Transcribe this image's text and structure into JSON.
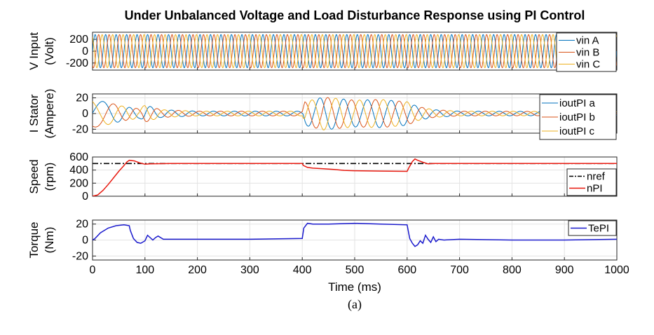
{
  "title": "Under Unbalanced Voltage and Load Disturbance Response using PI Control",
  "caption": "(a)",
  "colors": {
    "blue": "#0072bd",
    "orange": "#d95319",
    "yellow": "#edb120",
    "red": "#e8190f",
    "navy": "#1a1acd",
    "black": "#000000",
    "grid": "#e3e3e3"
  },
  "chart_data": [
    {
      "type": "line",
      "ylabel": [
        "V Input",
        "(Volt)"
      ],
      "ylim": [
        -320,
        320
      ],
      "yticks": [
        -200,
        0,
        200
      ],
      "ytick_labels": [
        "-200",
        "0",
        "200"
      ],
      "xlim": [
        0,
        1000
      ],
      "x_unit": "ms",
      "grid": true,
      "legend_position": "top-right",
      "signal": {
        "kind": "three-phase sinusoid",
        "frequency_hz": 50,
        "amplitude": 280
      },
      "series": [
        {
          "name": "vin A",
          "phase_deg": 0
        },
        {
          "name": "vin B",
          "phase_deg": -120
        },
        {
          "name": "vin C",
          "phase_deg": 120
        }
      ]
    },
    {
      "type": "line",
      "ylabel": [
        "I Stator",
        "(Ampere)"
      ],
      "ylim": [
        -25,
        25
      ],
      "yticks": [
        -20,
        0,
        20
      ],
      "ytick_labels": [
        "-20",
        "0",
        "20"
      ],
      "xlim": [
        0,
        1000
      ],
      "x_unit": "ms",
      "grid": true,
      "legend_position": "top-right",
      "envelope": {
        "t_ms": [
          0,
          30,
          60,
          90,
          100,
          130,
          200,
          400,
          405,
          440,
          500,
          550,
          600,
          620,
          650,
          700,
          1000
        ],
        "amp": [
          18,
          14,
          9,
          6,
          11,
          5,
          3,
          3,
          15,
          21,
          17,
          18,
          15,
          9,
          5,
          3,
          2.5
        ]
      },
      "electrical_frequency_hz": {
        "t_ms": [
          0,
          70,
          400,
          420,
          600,
          640,
          1000
        ],
        "f": [
          10,
          25,
          25,
          22,
          22,
          25,
          25
        ]
      },
      "series": [
        {
          "name": "ioutPI a",
          "phase_deg": 0
        },
        {
          "name": "ioutPI b",
          "phase_deg": -120
        },
        {
          "name": "ioutPI c",
          "phase_deg": 120
        }
      ]
    },
    {
      "type": "line",
      "ylabel": [
        "Speed",
        "(rpm)"
      ],
      "ylim": [
        0,
        600
      ],
      "yticks": [
        0,
        200,
        400,
        600
      ],
      "ytick_labels": [
        "0",
        "200",
        "400",
        "600"
      ],
      "xlim": [
        0,
        1000
      ],
      "x_unit": "ms",
      "grid": true,
      "legend_position": "bottom-right",
      "series": [
        {
          "name": "nref",
          "x": [
            0,
            1000
          ],
          "y": [
            500,
            500
          ]
        },
        {
          "name": "nPI",
          "x": [
            0,
            10,
            20,
            30,
            40,
            50,
            60,
            65,
            70,
            80,
            90,
            100,
            110,
            150,
            200,
            300,
            400,
            402,
            410,
            420,
            440,
            460,
            480,
            500,
            550,
            600,
            603,
            610,
            615,
            620,
            630,
            640,
            650,
            670,
            700,
            800,
            900,
            1000
          ],
          "y": [
            0,
            20,
            90,
            180,
            280,
            380,
            470,
            520,
            550,
            540,
            510,
            490,
            495,
            500,
            500,
            500,
            500,
            470,
            440,
            430,
            420,
            410,
            395,
            390,
            385,
            380,
            430,
            530,
            570,
            550,
            520,
            495,
            500,
            500,
            500,
            500,
            500,
            500
          ]
        }
      ]
    },
    {
      "type": "line",
      "ylabel": [
        "Torque",
        "(Nm)"
      ],
      "ylim": [
        -25,
        25
      ],
      "yticks": [
        -20,
        0,
        20
      ],
      "ytick_labels": [
        "-20",
        "0",
        "20"
      ],
      "xlim": [
        0,
        1000
      ],
      "xticks": [
        0,
        100,
        200,
        300,
        400,
        500,
        600,
        700,
        800,
        900,
        1000
      ],
      "xtick_labels": [
        "0",
        "100",
        "200",
        "300",
        "400",
        "500",
        "600",
        "700",
        "800",
        "900",
        "1000"
      ],
      "xlabel": "Time (ms)",
      "grid": true,
      "legend_position": "top-right",
      "series": [
        {
          "name": "TePI",
          "x": [
            0,
            5,
            15,
            30,
            45,
            60,
            70,
            72,
            78,
            85,
            92,
            100,
            105,
            115,
            120,
            125,
            135,
            150,
            200,
            300,
            400,
            403,
            410,
            420,
            450,
            500,
            550,
            600,
            602,
            605,
            610,
            615,
            620,
            625,
            630,
            635,
            640,
            645,
            650,
            655,
            660,
            670,
            700,
            800,
            900,
            1000
          ],
          "y": [
            0,
            2,
            9,
            15,
            18,
            19,
            18,
            12,
            2,
            -3,
            -4,
            -1,
            6,
            0,
            3,
            5,
            1,
            1,
            1,
            1,
            2,
            15,
            21,
            20,
            20,
            21,
            20,
            19,
            12,
            2,
            -4,
            -8,
            -6,
            -1,
            -4,
            6,
            1,
            -3,
            4,
            -2,
            1,
            0,
            1,
            0,
            0,
            1
          ]
        }
      ]
    }
  ]
}
